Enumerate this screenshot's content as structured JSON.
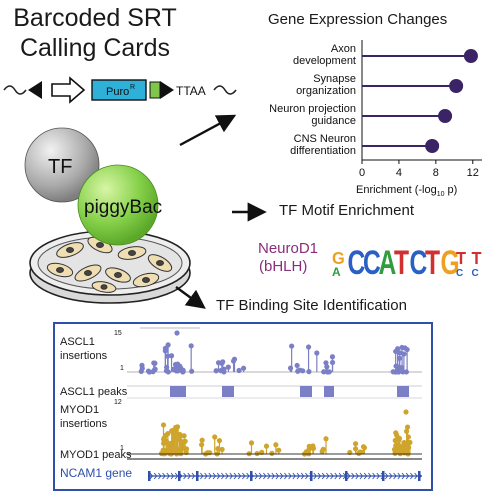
{
  "title": {
    "line1": "Barcoded SRT",
    "line2": "Calling Cards"
  },
  "construct": {
    "puro_label": "Puro",
    "puro_sup": "R",
    "ttaa_label": "TTAA"
  },
  "cell_labels": {
    "tf": "TF",
    "transposase": "piggyBac"
  },
  "gene_expression": {
    "title": "Gene Expression Changes",
    "xlabel_prefix": "Enrichment (-log",
    "xlabel_sub": "10",
    "xlabel_suffix": " p)",
    "xticks": [
      0,
      4,
      8,
      12
    ],
    "xlim": [
      0,
      13
    ],
    "dot_color": "#3b2466",
    "terms": [
      {
        "line1": "Axon",
        "line2": "development",
        "value": 11.8
      },
      {
        "line1": "Synapse",
        "line2": "organization",
        "value": 10.2
      },
      {
        "line1": "Neuron projection",
        "line2": "guidance",
        "value": 9.0
      },
      {
        "line1": "CNS Neuron",
        "line2": "differentiation",
        "value": 7.6
      }
    ]
  },
  "motif": {
    "title": "TF Motif Enrichment",
    "tf_name": "NeuroD1",
    "tf_family": "(bHLH)",
    "tf_color": "#8a2d7a",
    "sequence": "GCCATCTGTT"
  },
  "binding": {
    "title": "TF Binding Site Identification",
    "frame_color": "#2f4faa",
    "ascl1": {
      "label1": "ASCL1",
      "label2": "insertions",
      "ymax": "15",
      "ymin": "1",
      "peaks_label": "ASCL1 peaks",
      "color": "#7b7fc6"
    },
    "myod1": {
      "label1": "MYOD1",
      "label2": "insertions",
      "ymax": "12",
      "ymin": "1",
      "peaks_label": "MYOD1 peaks",
      "color": "#cfa42c"
    },
    "gene": {
      "label": "NCAM1 gene",
      "color": "#2f4faa"
    }
  }
}
